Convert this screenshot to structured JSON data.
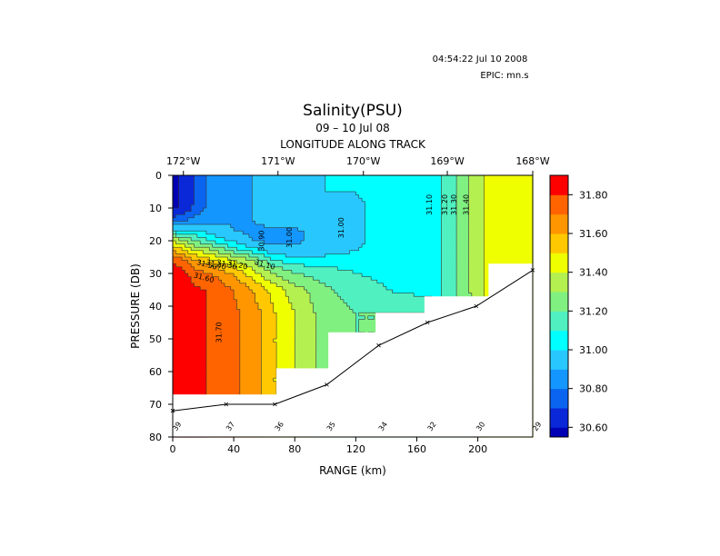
{
  "header": {
    "timestamp": "04:54:22 Jul 10 2008",
    "epic": "EPIC:  mn.s"
  },
  "chart_data": {
    "type": "heatmap",
    "title": "Salinity(PSU)",
    "subtitle": "09 – 10 Jul 08",
    "top_axis_label": "LONGITUDE ALONG TRACK",
    "xlabel": "RANGE (km)",
    "ylabel": "PRESSURE (DB)",
    "xlim": [
      0,
      236
    ],
    "ylim": [
      80,
      0
    ],
    "x_ticks": [
      0,
      40,
      80,
      120,
      160,
      200
    ],
    "y_ticks": [
      0,
      10,
      20,
      30,
      40,
      50,
      60,
      70,
      80
    ],
    "top_ticks": [
      {
        "label": "172°W",
        "range_km": 7
      },
      {
        "label": "171°W",
        "range_km": 69
      },
      {
        "label": "170°W",
        "range_km": 125
      },
      {
        "label": "169°W",
        "range_km": 180
      },
      {
        "label": "168°W",
        "range_km": 236
      }
    ],
    "color_levels": [
      30.55,
      30.6,
      30.7,
      30.8,
      30.9,
      31.0,
      31.1,
      31.2,
      31.3,
      31.4,
      31.5,
      31.6,
      31.7,
      31.8,
      31.9
    ],
    "colors": [
      "#0000b4",
      "#0a28d8",
      "#0a64f0",
      "#1496ff",
      "#28c8ff",
      "#00ffff",
      "#50f0c0",
      "#80f080",
      "#b4f050",
      "#f0ff00",
      "#ffc800",
      "#ff9600",
      "#ff6400",
      "#ff0000"
    ],
    "colorbar_labels": [
      "30.60",
      "30.80",
      "31.00",
      "31.20",
      "31.40",
      "31.60",
      "31.80"
    ],
    "contour_labels": [
      "30.90",
      "31.00",
      "31.00",
      "31.10",
      "31.20",
      "31.30",
      "31.40",
      "31.10",
      "31.20",
      "31.30",
      "31.40",
      "31.50",
      "31.60",
      "31.70"
    ],
    "stations": [
      {
        "id": "39",
        "range_km": 0,
        "bottom_depth": 72
      },
      {
        "id": "37",
        "range_km": 35,
        "bottom_depth": 70
      },
      {
        "id": "36",
        "range_km": 67,
        "bottom_depth": 70
      },
      {
        "id": "35",
        "range_km": 101,
        "bottom_depth": 64
      },
      {
        "id": "34",
        "range_km": 135,
        "bottom_depth": 52
      },
      {
        "id": "32",
        "range_km": 167,
        "bottom_depth": 45
      },
      {
        "id": "30",
        "range_km": 199,
        "bottom_depth": 40
      },
      {
        "id": "29",
        "range_km": 236,
        "bottom_depth": 29
      }
    ],
    "cast_max_depth": [
      {
        "from_km": 0,
        "to_km": 68,
        "depth": 67
      },
      {
        "from_km": 68,
        "to_km": 102,
        "depth": 59
      },
      {
        "from_km": 102,
        "to_km": 133,
        "depth": 48
      },
      {
        "from_km": 133,
        "to_km": 165,
        "depth": 42
      },
      {
        "from_km": 165,
        "to_km": 207,
        "depth": 37
      },
      {
        "from_km": 207,
        "to_km": 236,
        "depth": 27
      }
    ],
    "salinity_field": {
      "x_km": [
        0,
        8,
        15,
        28,
        40,
        52,
        60,
        67,
        80,
        100,
        120,
        140,
        165,
        175,
        183,
        190,
        200,
        207,
        236
      ],
      "depth": [
        0,
        10,
        14,
        17,
        20,
        23,
        26,
        30,
        35,
        42,
        50,
        60,
        67,
        70,
        80
      ],
      "values": [
        [
          30.57,
          30.62,
          30.72,
          30.88,
          30.89,
          30.9,
          30.92,
          30.94,
          30.95,
          31.0,
          31.02,
          31.04,
          31.06,
          31.09,
          31.15,
          31.25,
          31.35,
          31.45,
          31.45
        ],
        [
          30.58,
          30.63,
          30.73,
          30.88,
          30.89,
          30.9,
          30.92,
          30.94,
          30.95,
          31.0,
          30.98,
          31.04,
          31.06,
          31.09,
          31.15,
          31.25,
          31.35,
          31.45,
          31.45
        ],
        [
          30.75,
          30.8,
          30.85,
          30.88,
          30.89,
          30.9,
          30.92,
          30.94,
          30.95,
          31.0,
          30.98,
          31.04,
          31.06,
          31.09,
          31.15,
          31.25,
          31.35,
          31.45,
          31.45
        ],
        [
          31.05,
          31.0,
          31.0,
          30.95,
          30.9,
          30.88,
          30.88,
          30.88,
          30.88,
          30.95,
          30.98,
          31.04,
          31.06,
          31.09,
          31.15,
          31.25,
          31.35,
          31.45,
          31.45
        ],
        [
          31.4,
          31.3,
          31.2,
          31.05,
          30.98,
          30.9,
          30.88,
          30.88,
          30.88,
          30.95,
          30.98,
          31.04,
          31.06,
          31.09,
          31.15,
          31.25,
          31.35,
          31.45,
          31.45
        ],
        [
          31.6,
          31.5,
          31.4,
          31.3,
          31.15,
          31.05,
          30.98,
          30.93,
          30.92,
          30.95,
          31.0,
          31.04,
          31.06,
          31.09,
          31.15,
          31.25,
          31.35,
          31.45,
          31.45
        ],
        [
          31.8,
          31.7,
          31.6,
          31.5,
          31.4,
          31.3,
          31.2,
          31.1,
          31.05,
          31.05,
          31.05,
          31.05,
          31.06,
          31.09,
          31.15,
          31.25,
          31.35,
          31.45,
          31.45
        ],
        [
          31.88,
          31.82,
          31.75,
          31.68,
          31.58,
          31.45,
          31.35,
          31.3,
          31.2,
          31.15,
          31.1,
          31.08,
          31.06,
          31.09,
          31.15,
          31.25,
          31.35,
          31.45,
          31.45
        ],
        [
          31.9,
          31.85,
          31.82,
          31.78,
          31.7,
          31.6,
          31.52,
          31.45,
          31.35,
          31.22,
          31.15,
          31.1,
          31.06,
          31.09,
          31.15,
          31.25,
          31.35,
          31.45,
          31.45
        ],
        [
          31.9,
          31.85,
          31.82,
          31.78,
          31.72,
          31.65,
          31.58,
          31.5,
          31.4,
          31.25,
          31.2,
          31.2,
          31.2,
          31.09,
          31.15,
          31.25,
          31.35,
          31.45,
          31.45
        ],
        [
          31.9,
          31.85,
          31.82,
          31.78,
          31.72,
          31.65,
          31.58,
          31.5,
          31.4,
          31.25,
          31.2,
          31.2,
          31.2,
          31.2,
          31.2,
          31.25,
          31.35,
          31.45,
          31.45
        ],
        [
          31.9,
          31.85,
          31.82,
          31.78,
          31.72,
          31.65,
          31.58,
          31.5,
          31.4,
          31.25,
          31.2,
          31.2,
          31.2,
          31.2,
          31.2,
          31.25,
          31.35,
          31.45,
          31.45
        ],
        [
          31.9,
          31.85,
          31.82,
          31.78,
          31.72,
          31.65,
          31.58,
          31.5,
          31.4,
          31.25,
          31.2,
          31.2,
          31.2,
          31.2,
          31.2,
          31.25,
          31.35,
          31.45,
          31.45
        ],
        [
          31.9,
          31.85,
          31.82,
          31.78,
          31.72,
          31.65,
          31.58,
          31.5,
          31.4,
          31.25,
          31.2,
          31.2,
          31.2,
          31.2,
          31.2,
          31.25,
          31.35,
          31.45,
          31.45
        ],
        [
          31.9,
          31.85,
          31.82,
          31.78,
          31.72,
          31.65,
          31.58,
          31.5,
          31.4,
          31.25,
          31.2,
          31.2,
          31.2,
          31.2,
          31.2,
          31.25,
          31.35,
          31.45,
          31.45
        ]
      ]
    },
    "grid": false,
    "colorbar_position": "right"
  }
}
